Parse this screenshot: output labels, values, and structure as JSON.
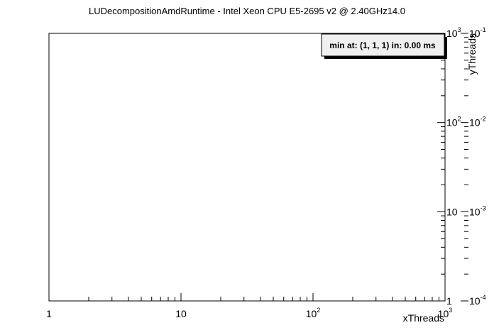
{
  "chart_data": {
    "type": "heatmap",
    "title": "LUDecompositionAmdRuntime - Intel Xeon CPU E5-2695 v2 @ 2.40GHz14.0",
    "xlabel": "xThreads",
    "ylabel": "yThreads",
    "x_scale": "log",
    "y_scale": "log",
    "xlim": [
      1,
      1000
    ],
    "ylim": [
      1,
      1000
    ],
    "x_ticks": [
      {
        "base": "1",
        "exp": ""
      },
      {
        "base": "10",
        "exp": ""
      },
      {
        "base": "10",
        "exp": "2"
      },
      {
        "base": "10",
        "exp": "3"
      }
    ],
    "y_ticks": [
      {
        "base": "1",
        "exp": ""
      },
      {
        "base": "10",
        "exp": ""
      },
      {
        "base": "10",
        "exp": "2"
      },
      {
        "base": "10",
        "exp": "3"
      }
    ],
    "z_scale": "log",
    "zlim": [
      0.0001,
      0.1
    ],
    "z_ticks": [
      {
        "base": "10",
        "exp": "-4"
      },
      {
        "base": "10",
        "exp": "-3"
      },
      {
        "base": "10",
        "exp": "-2"
      },
      {
        "base": "10",
        "exp": "-1"
      }
    ],
    "cells": [],
    "stats_box": "min at: (1, 1, 1) in: 0.00 ms",
    "grid": false
  }
}
